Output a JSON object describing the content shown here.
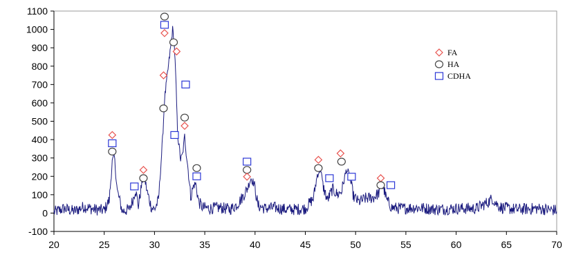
{
  "chart_data": {
    "type": "line",
    "title": "",
    "xlabel": "",
    "ylabel": "",
    "xlim": [
      20,
      70
    ],
    "ylim": [
      -100,
      1100
    ],
    "xticks": [
      20,
      25,
      30,
      35,
      40,
      45,
      50,
      55,
      60,
      65,
      70
    ],
    "yticks": [
      -100,
      0,
      100,
      200,
      300,
      400,
      500,
      600,
      700,
      800,
      900,
      1000,
      1100
    ],
    "grid": false,
    "legend_position": "top-right",
    "line_color": "#1a1a7e",
    "pattern": {
      "x": [
        20,
        21,
        22,
        23,
        24,
        25,
        25.5,
        25.8,
        26,
        26.3,
        26.8,
        27.5,
        27.9,
        28.1,
        28.4,
        28.8,
        29.0,
        29.3,
        29.7,
        30.0,
        30.4,
        30.8,
        31.0,
        31.3,
        31.6,
        31.8,
        31.95,
        32.1,
        32.3,
        32.6,
        32.8,
        33.0,
        33.15,
        33.3,
        33.6,
        33.9,
        34.1,
        34.4,
        34.8,
        35.5,
        36.5,
        37.5,
        38.2,
        38.8,
        39.2,
        39.6,
        39.9,
        40.3,
        41,
        42,
        43,
        44,
        45,
        45.8,
        46.2,
        46.5,
        46.8,
        47.2,
        47.7,
        48.2,
        48.6,
        48.9,
        49.1,
        49.4,
        49.8,
        50.3,
        51,
        51.8,
        52.3,
        52.6,
        52.8,
        53.1,
        53.6,
        54.5,
        56,
        58,
        60,
        62,
        63.2,
        63.6,
        64,
        64.5,
        66,
        68,
        70
      ],
      "y": [
        5,
        25,
        10,
        35,
        20,
        15,
        70,
        280,
        310,
        120,
        10,
        20,
        80,
        130,
        40,
        180,
        190,
        110,
        30,
        20,
        70,
        400,
        620,
        760,
        900,
        1000,
        940,
        760,
        430,
        290,
        320,
        420,
        330,
        260,
        90,
        150,
        160,
        60,
        30,
        25,
        30,
        20,
        45,
        90,
        130,
        190,
        160,
        40,
        25,
        30,
        20,
        20,
        25,
        80,
        210,
        240,
        140,
        70,
        130,
        100,
        120,
        190,
        240,
        200,
        90,
        60,
        80,
        85,
        110,
        150,
        135,
        70,
        30,
        25,
        30,
        20,
        25,
        25,
        60,
        80,
        50,
        30,
        20,
        25,
        15
      ]
    },
    "legend": [
      {
        "label": "FA",
        "marker": "diamond",
        "color": "#e8534f"
      },
      {
        "label": "HA",
        "marker": "circle",
        "color": "#444444"
      },
      {
        "label": "CDHA",
        "marker": "square",
        "color": "#2b37d6"
      }
    ],
    "peak_markers": [
      {
        "series": "FA",
        "x": 25.8,
        "y": 425
      },
      {
        "series": "CDHA",
        "x": 25.8,
        "y": 380
      },
      {
        "series": "HA",
        "x": 25.8,
        "y": 335
      },
      {
        "series": "CDHA",
        "x": 28.0,
        "y": 145
      },
      {
        "series": "FA",
        "x": 28.9,
        "y": 235
      },
      {
        "series": "HA",
        "x": 28.9,
        "y": 190
      },
      {
        "series": "HA",
        "x": 31.0,
        "y": 1070
      },
      {
        "series": "CDHA",
        "x": 31.0,
        "y": 1025
      },
      {
        "series": "FA",
        "x": 31.0,
        "y": 980
      },
      {
        "series": "FA",
        "x": 30.9,
        "y": 750
      },
      {
        "series": "HA",
        "x": 30.9,
        "y": 570
      },
      {
        "series": "HA",
        "x": 31.9,
        "y": 930
      },
      {
        "series": "FA",
        "x": 32.2,
        "y": 880
      },
      {
        "series": "CDHA",
        "x": 33.1,
        "y": 700
      },
      {
        "series": "HA",
        "x": 33.0,
        "y": 520
      },
      {
        "series": "FA",
        "x": 33.0,
        "y": 475
      },
      {
        "series": "CDHA",
        "x": 32.0,
        "y": 425
      },
      {
        "series": "HA",
        "x": 34.2,
        "y": 245
      },
      {
        "series": "CDHA",
        "x": 34.2,
        "y": 200
      },
      {
        "series": "CDHA",
        "x": 39.2,
        "y": 280
      },
      {
        "series": "HA",
        "x": 39.2,
        "y": 235
      },
      {
        "series": "FA",
        "x": 39.2,
        "y": 198
      },
      {
        "series": "FA",
        "x": 46.3,
        "y": 290
      },
      {
        "series": "HA",
        "x": 46.3,
        "y": 245
      },
      {
        "series": "CDHA",
        "x": 47.4,
        "y": 190
      },
      {
        "series": "FA",
        "x": 48.5,
        "y": 325
      },
      {
        "series": "HA",
        "x": 48.6,
        "y": 280
      },
      {
        "series": "CDHA",
        "x": 49.6,
        "y": 198
      },
      {
        "series": "FA",
        "x": 52.5,
        "y": 190
      },
      {
        "series": "HA",
        "x": 52.5,
        "y": 152
      },
      {
        "series": "CDHA",
        "x": 53.5,
        "y": 152
      }
    ]
  }
}
